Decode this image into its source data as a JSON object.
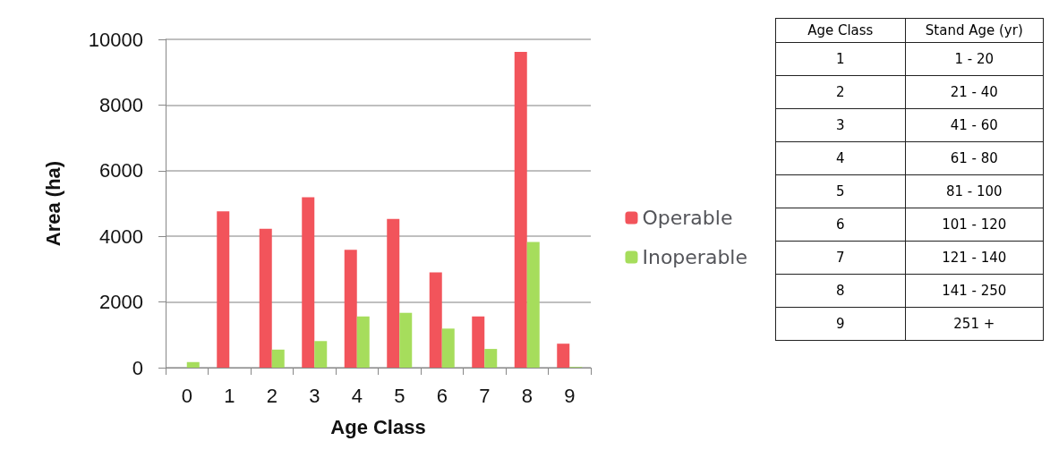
{
  "chart_data": {
    "type": "bar",
    "xlabel": "Age Class",
    "ylabel": "Area (ha)",
    "categories": [
      "0",
      "1",
      "2",
      "3",
      "4",
      "5",
      "6",
      "7",
      "8",
      "9"
    ],
    "series": [
      {
        "name": "Operable",
        "color": "#f2545b",
        "values": [
          0,
          4760,
          4230,
          5190,
          3590,
          4530,
          2900,
          1560,
          9620,
          730
        ]
      },
      {
        "name": "Inoperable",
        "color": "#a6dd5c",
        "values": [
          170,
          null,
          550,
          810,
          1560,
          1670,
          1190,
          570,
          3830,
          20
        ]
      }
    ],
    "ylim": [
      0,
      10000
    ],
    "yticks": [
      0,
      2000,
      4000,
      6000,
      8000,
      10000
    ],
    "grid": "y",
    "legend": "right",
    "annotations": [
      "Age Class",
      "Stand Age (yr)",
      "1",
      "1 - 20",
      "2",
      "21 - 40",
      "3",
      "41 - 60",
      "4",
      "61 - 80",
      "5",
      "81 - 100",
      "6",
      "101 - 120",
      "7",
      "121 - 140",
      "8",
      "141 - 250",
      "9",
      "251 +"
    ]
  }
}
